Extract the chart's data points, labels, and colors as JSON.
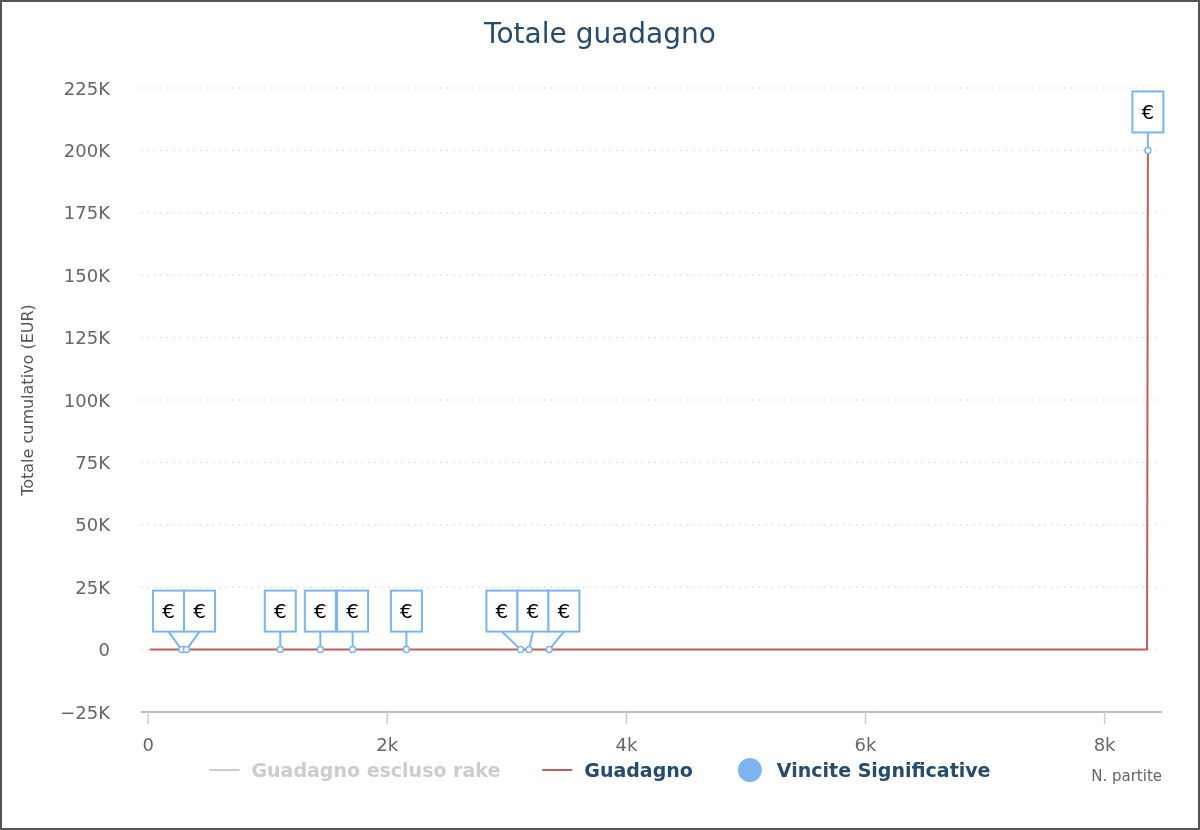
{
  "chart_data": {
    "type": "line",
    "title": "Totale guadagno",
    "xlabel": "N. partite",
    "ylabel": "Totale cumulativo (EUR)",
    "xlim": [
      -60,
      8480
    ],
    "xticks": [
      0,
      {
        "value": 2000,
        "label": "2k"
      },
      {
        "value": 4000,
        "label": "4k"
      },
      {
        "value": 6000,
        "label": "6k"
      },
      {
        "value": 8000,
        "label": "8k"
      }
    ],
    "ylim": [
      -25000,
      225000
    ],
    "yticks": [
      {
        "value": -25000,
        "label": "−25K"
      },
      0,
      {
        "value": 25000,
        "label": "25K"
      },
      {
        "value": 50000,
        "label": "50K"
      },
      {
        "value": 75000,
        "label": "75K"
      },
      {
        "value": 100000,
        "label": "100K"
      },
      {
        "value": 125000,
        "label": "125K"
      },
      {
        "value": 150000,
        "label": "150K"
      },
      {
        "value": 175000,
        "label": "175K"
      },
      {
        "value": 200000,
        "label": "200K"
      },
      {
        "value": 225000,
        "label": "225K"
      }
    ],
    "grid": "y",
    "legend": "bottom",
    "series": [
      {
        "name": "Guadagno escluso rake",
        "color": "#cccccc"
      },
      {
        "name": "Guadagno",
        "color": "#c55a5a",
        "x": [
          20,
          8355,
          8362
        ],
        "values": [
          0,
          0,
          200000
        ]
      },
      {
        "name": "Vincite Significative",
        "type": "scatter",
        "color": "#7cb5ec",
        "marker": "circle",
        "x": [
          280,
          320,
          1105,
          1440,
          1710,
          2160,
          3115,
          3185,
          3355,
          8362
        ],
        "values": [
          0,
          0,
          0,
          0,
          0,
          0,
          0,
          0,
          0,
          200000
        ],
        "value_labels": [
          "€",
          "€",
          "€",
          "€",
          "€",
          "€",
          "€",
          "€",
          "€",
          "€"
        ]
      }
    ]
  }
}
